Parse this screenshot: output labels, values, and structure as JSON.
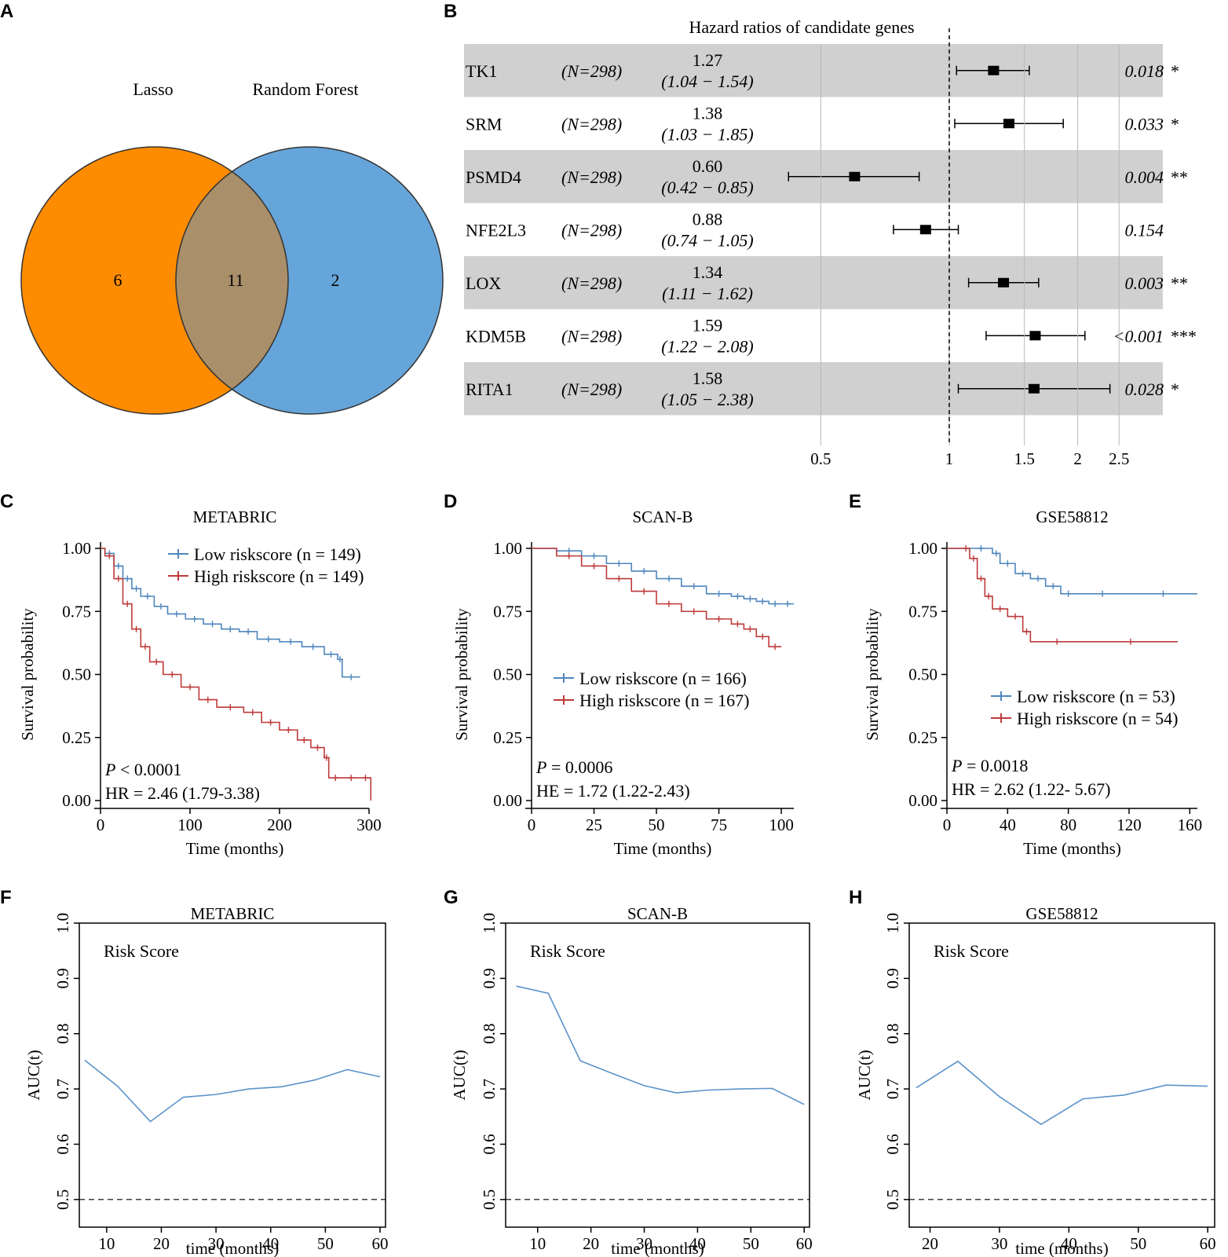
{
  "panels": {
    "A": "A",
    "B": "B",
    "C": "C",
    "D": "D",
    "E": "E",
    "F": "F",
    "G": "G",
    "H": "H"
  },
  "venn": {
    "set1": "Lasso",
    "set2": "Random Forest",
    "only1": "6",
    "both": "11",
    "only2": "2",
    "color1": "#FF8C00",
    "color2": "#66A5D9",
    "color_overlap": "#A98F6A"
  },
  "forest": {
    "title": "Hazard ratios of candidate genes",
    "ticks": [
      {
        "value": 0.5,
        "label": "0.5"
      },
      {
        "value": 1,
        "label": "1"
      },
      {
        "value": 1.5,
        "label": "1.5"
      },
      {
        "value": 2,
        "label": "2"
      },
      {
        "value": 2.5,
        "label": "2.5"
      }
    ],
    "reference": 1,
    "rows": [
      {
        "gene": "TK1",
        "n": "(N=298)",
        "hr_text": "1.27",
        "ci_text": "(1.04 − 1.54)",
        "hr": 1.27,
        "lo": 1.04,
        "hi": 1.54,
        "p": "0.018",
        "sig": "*",
        "shaded": true
      },
      {
        "gene": "SRM",
        "n": "(N=298)",
        "hr_text": "1.38",
        "ci_text": "(1.03 − 1.85)",
        "hr": 1.38,
        "lo": 1.03,
        "hi": 1.85,
        "p": "0.033",
        "sig": "*",
        "shaded": false
      },
      {
        "gene": "PSMD4",
        "n": "(N=298)",
        "hr_text": "0.60",
        "ci_text": "(0.42 − 0.85)",
        "hr": 0.6,
        "lo": 0.42,
        "hi": 0.85,
        "p": "0.004",
        "sig": "**",
        "shaded": true
      },
      {
        "gene": "NFE2L3",
        "n": "(N=298)",
        "hr_text": "0.88",
        "ci_text": "(0.74 − 1.05)",
        "hr": 0.88,
        "lo": 0.74,
        "hi": 1.05,
        "p": "0.154",
        "sig": "",
        "shaded": false
      },
      {
        "gene": "LOX",
        "n": "(N=298)",
        "hr_text": "1.34",
        "ci_text": "(1.11 − 1.62)",
        "hr": 1.34,
        "lo": 1.11,
        "hi": 1.62,
        "p": "0.003",
        "sig": "**",
        "shaded": true
      },
      {
        "gene": "KDM5B",
        "n": "(N=298)",
        "hr_text": "1.59",
        "ci_text": "(1.22 − 2.08)",
        "hr": 1.59,
        "lo": 1.22,
        "hi": 2.08,
        "p": "<0.001",
        "sig": "***",
        "shaded": false
      },
      {
        "gene": "RITA1",
        "n": "(N=298)",
        "hr_text": "1.58",
        "ci_text": "(1.05 − 2.38)",
        "hr": 1.58,
        "lo": 1.05,
        "hi": 2.38,
        "p": "0.028",
        "sig": "*",
        "shaded": true
      }
    ]
  },
  "chart_data": [
    {
      "type": "line",
      "panel": "C",
      "title": "METABRIC",
      "xlabel": "Time (months)",
      "ylabel": "Survival probability",
      "xlim": [
        0,
        300
      ],
      "ylim": [
        0,
        1
      ],
      "xticks": [
        "0",
        "100",
        "200",
        "300"
      ],
      "yticks": [
        "0.00",
        "0.25",
        "0.50",
        "0.75",
        "1.00"
      ],
      "legend_position": "top-right",
      "series": [
        {
          "name": "Low riskscore (n = 149)",
          "color": "#4F86BE",
          "x": [
            0,
            5,
            15,
            25,
            35,
            45,
            60,
            75,
            95,
            115,
            135,
            155,
            175,
            200,
            225,
            250,
            265,
            270,
            290
          ],
          "values": [
            1.0,
            0.98,
            0.93,
            0.88,
            0.84,
            0.81,
            0.77,
            0.74,
            0.72,
            0.7,
            0.68,
            0.67,
            0.64,
            0.63,
            0.61,
            0.58,
            0.56,
            0.49,
            0.49
          ]
        },
        {
          "name": "High riskscore (n = 149)",
          "color": "#BE3A3A",
          "x": [
            0,
            5,
            15,
            25,
            35,
            45,
            55,
            70,
            90,
            110,
            130,
            160,
            180,
            200,
            220,
            235,
            250,
            255,
            270,
            290,
            302
          ],
          "values": [
            1.0,
            0.97,
            0.88,
            0.78,
            0.68,
            0.61,
            0.55,
            0.5,
            0.45,
            0.4,
            0.37,
            0.35,
            0.31,
            0.28,
            0.24,
            0.21,
            0.17,
            0.09,
            0.09,
            0.09,
            0.0
          ]
        }
      ],
      "annotations": [
        {
          "p_label": "P",
          "p_text": " < 0.0001"
        },
        {
          "text": "HR = 2.46 (1.79-3.38)"
        }
      ]
    },
    {
      "type": "line",
      "panel": "D",
      "title": "SCAN-B",
      "xlabel": "Time (months)",
      "ylabel": "Survival probability",
      "xlim": [
        0,
        105
      ],
      "ylim": [
        0,
        1
      ],
      "xticks": [
        "0",
        "25",
        "50",
        "75",
        "100"
      ],
      "yticks": [
        "0.00",
        "0.25",
        "0.50",
        "0.75",
        "1.00"
      ],
      "legend_position": "middle",
      "series": [
        {
          "name": "Low riskscore (n = 166)",
          "color": "#4F86BE",
          "x": [
            0,
            10,
            20,
            30,
            40,
            50,
            60,
            70,
            80,
            85,
            90,
            95,
            100,
            105
          ],
          "values": [
            1.0,
            0.99,
            0.97,
            0.94,
            0.91,
            0.88,
            0.85,
            0.82,
            0.81,
            0.8,
            0.79,
            0.78,
            0.78,
            0.78
          ]
        },
        {
          "name": "High riskscore (n = 167)",
          "color": "#BE3A3A",
          "x": [
            0,
            10,
            20,
            30,
            40,
            50,
            60,
            70,
            80,
            85,
            90,
            95,
            100
          ],
          "values": [
            1.0,
            0.97,
            0.93,
            0.88,
            0.83,
            0.78,
            0.75,
            0.72,
            0.7,
            0.68,
            0.65,
            0.61,
            0.61
          ]
        }
      ],
      "annotations": [
        {
          "p_label": "P",
          "p_text": " = 0.0006"
        },
        {
          "text": "HE = 1.72 (1.22-2.43)"
        }
      ]
    },
    {
      "type": "line",
      "panel": "E",
      "title": "GSE58812",
      "xlabel": "Time (months)",
      "ylabel": "Survival probability",
      "xlim": [
        0,
        165
      ],
      "ylim": [
        0,
        1
      ],
      "xticks": [
        "0",
        "40",
        "80",
        "120",
        "160"
      ],
      "yticks": [
        "0.00",
        "0.25",
        "0.50",
        "0.75",
        "1.00"
      ],
      "legend_position": "middle",
      "series": [
        {
          "name": "Low riskscore (n = 53)",
          "color": "#4F86BE",
          "x": [
            0,
            15,
            30,
            35,
            45,
            55,
            65,
            75,
            85,
            120,
            165
          ],
          "values": [
            1.0,
            1.0,
            0.98,
            0.94,
            0.9,
            0.88,
            0.85,
            0.82,
            0.82,
            0.82,
            0.82
          ]
        },
        {
          "name": "High riskscore (n = 54)",
          "color": "#BE3A3A",
          "x": [
            0,
            10,
            15,
            20,
            25,
            30,
            40,
            50,
            55,
            90,
            152
          ],
          "values": [
            1.0,
            1.0,
            0.96,
            0.88,
            0.81,
            0.76,
            0.73,
            0.67,
            0.63,
            0.63,
            0.63
          ]
        }
      ],
      "annotations": [
        {
          "p_label": "P",
          "p_text": " = 0.0018"
        },
        {
          "text": "HR = 2.62 (1.22- 5.67)"
        }
      ]
    },
    {
      "type": "line",
      "panel": "F",
      "title": "METABRIC",
      "xlabel": "time (months)",
      "ylabel": "AUC(t)",
      "xlim": [
        5,
        61
      ],
      "ylim": [
        0.45,
        1.0
      ],
      "xticks": [
        "10",
        "20",
        "30",
        "40",
        "50",
        "60"
      ],
      "yticks": [
        "0.5",
        "0.6",
        "0.7",
        "0.8",
        "0.9",
        "1.0"
      ],
      "legend": "Risk Score",
      "reference": 0.5,
      "series": [
        {
          "name": "Risk Score",
          "color": "#5B93C9",
          "x": [
            6,
            12,
            18,
            24,
            30,
            36,
            42,
            48,
            54,
            60
          ],
          "values": [
            0.752,
            0.705,
            0.641,
            0.685,
            0.69,
            0.7,
            0.704,
            0.716,
            0.735,
            0.722
          ]
        }
      ]
    },
    {
      "type": "line",
      "panel": "G",
      "title": "SCAN-B",
      "xlabel": "time (months)",
      "ylabel": "AUC(t)",
      "xlim": [
        4,
        61
      ],
      "ylim": [
        0.45,
        1.0
      ],
      "xticks": [
        "10",
        "20",
        "30",
        "40",
        "50",
        "60"
      ],
      "yticks": [
        "0.5",
        "0.6",
        "0.7",
        "0.8",
        "0.9",
        "1.0"
      ],
      "legend": "Risk Score",
      "reference": 0.5,
      "series": [
        {
          "name": "Risk Score",
          "color": "#5B93C9",
          "x": [
            6,
            12,
            18,
            24,
            30,
            36,
            42,
            48,
            54,
            60
          ],
          "values": [
            0.886,
            0.873,
            0.751,
            0.728,
            0.706,
            0.693,
            0.698,
            0.7,
            0.701,
            0.672
          ]
        }
      ]
    },
    {
      "type": "line",
      "panel": "H",
      "title": "GSE58812",
      "xlabel": "time (months)",
      "ylabel": "AUC(t)",
      "xlim": [
        17,
        61
      ],
      "ylim": [
        0.45,
        1.0
      ],
      "xticks": [
        "20",
        "30",
        "40",
        "50",
        "60"
      ],
      "yticks": [
        "0.5",
        "0.6",
        "0.7",
        "0.8",
        "0.9",
        "1.0"
      ],
      "legend": "Risk Score",
      "reference": 0.5,
      "series": [
        {
          "name": "Risk Score",
          "color": "#5B93C9",
          "x": [
            18,
            24,
            30,
            36,
            42,
            48,
            54,
            60
          ],
          "values": [
            0.702,
            0.75,
            0.686,
            0.636,
            0.682,
            0.689,
            0.707,
            0.705
          ]
        }
      ]
    }
  ]
}
